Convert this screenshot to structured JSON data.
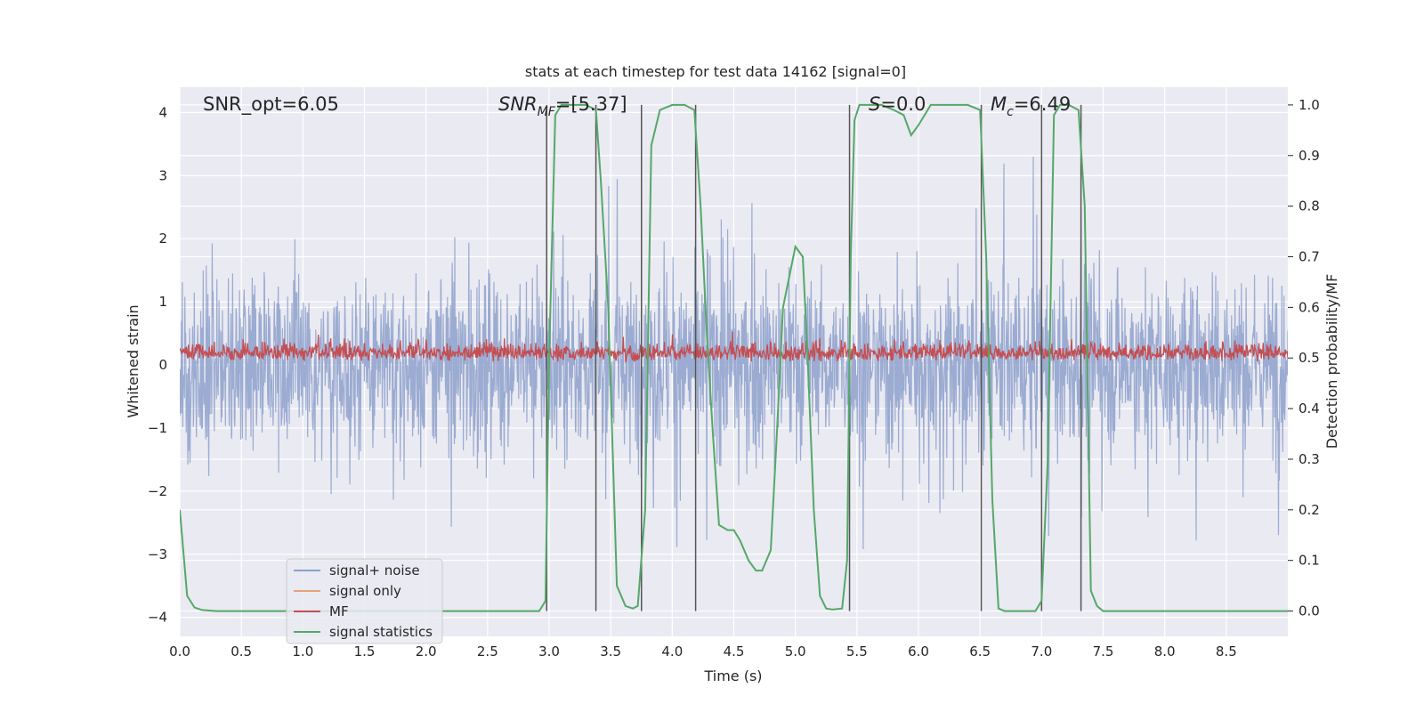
{
  "chart_data": {
    "type": "line",
    "title": "stats at each timestep for test data 14162 [signal=0]",
    "xlabel": "Time (s)",
    "ylabel": "Whitened strain",
    "ylabel_right": "Detection probability/MF",
    "xlim": [
      0,
      9
    ],
    "ylim": [
      -4.3,
      4.4
    ],
    "ylim_right": [
      -0.05,
      1.035
    ],
    "xticks": [
      0.0,
      0.5,
      1.0,
      1.5,
      2.0,
      2.5,
      3.0,
      3.5,
      4.0,
      4.5,
      5.0,
      5.5,
      6.0,
      6.5,
      7.0,
      7.5,
      8.0,
      8.5
    ],
    "xtick_labels": [
      "0.0",
      "0.5",
      "1.0",
      "1.5",
      "2.0",
      "2.5",
      "3.0",
      "3.5",
      "4.0",
      "4.5",
      "5.0",
      "5.5",
      "6.0",
      "6.5",
      "7.0",
      "7.5",
      "8.0",
      "8.5"
    ],
    "yticks": [
      4,
      3,
      2,
      1,
      0,
      -1,
      -2,
      -3,
      -4
    ],
    "ytick_labels": [
      "4",
      "3",
      "2",
      "1",
      "0",
      "−1",
      "−2",
      "−3",
      "−4"
    ],
    "yticks_right": [
      1.0,
      0.9,
      0.8,
      0.7,
      0.6,
      0.5,
      0.4,
      0.3,
      0.2,
      0.1,
      0.0
    ],
    "ytick_labels_right": [
      "1.0",
      "0.9",
      "0.8",
      "0.7",
      "0.6",
      "0.5",
      "0.4",
      "0.3",
      "0.2",
      "0.1",
      "0.0"
    ],
    "grid": true,
    "legend_position": "lower-left",
    "annotations": {
      "snr_opt": "SNR_opt=6.05",
      "snr_mf_main": "SNR",
      "snr_mf_sub": "MF",
      "snr_mf_value": "=[5.37]",
      "s_main": "S",
      "s_value": "=0.0",
      "mc_main": "M",
      "mc_sub": "c",
      "mc_value": "=6.49"
    },
    "series": [
      {
        "name": "signal+ noise",
        "color": "#8da0cb",
        "axis": "left",
        "noise_amplitude": 3.3
      },
      {
        "name": "signal only",
        "color": "#e8a07c",
        "axis": "left",
        "values": []
      },
      {
        "name": "MF",
        "color": "#c44e52",
        "axis": "left",
        "baseline": 0.05,
        "noise_amplitude": 0.7
      },
      {
        "name": "signal statistics",
        "color": "#55a868",
        "axis": "right",
        "x": [
          0.0,
          0.06,
          0.12,
          0.18,
          0.3,
          0.6,
          1.0,
          1.5,
          2.0,
          2.5,
          2.92,
          2.97,
          3.0,
          3.05,
          3.1,
          3.2,
          3.3,
          3.38,
          3.42,
          3.48,
          3.55,
          3.62,
          3.68,
          3.72,
          3.78,
          3.83,
          3.9,
          4.0,
          4.1,
          4.18,
          4.23,
          4.28,
          4.33,
          4.38,
          4.45,
          4.5,
          4.55,
          4.62,
          4.68,
          4.73,
          4.8,
          4.85,
          4.9,
          5.0,
          5.06,
          5.1,
          5.15,
          5.2,
          5.25,
          5.3,
          5.38,
          5.42,
          5.45,
          5.48,
          5.52,
          5.6,
          5.7,
          5.8,
          5.88,
          5.94,
          6.0,
          6.1,
          6.2,
          6.3,
          6.4,
          6.5,
          6.55,
          6.6,
          6.65,
          6.7,
          6.85,
          6.95,
          7.0,
          7.05,
          7.1,
          7.15,
          7.22,
          7.3,
          7.35,
          7.4,
          7.45,
          7.5,
          7.6,
          8.0,
          8.5,
          9.0
        ],
        "values": [
          0.2,
          0.03,
          0.007,
          0.002,
          0.0,
          0.0,
          0.0,
          0.0,
          0.0,
          0.0,
          0.0,
          0.02,
          0.5,
          0.98,
          1.0,
          1.0,
          1.0,
          0.99,
          0.85,
          0.6,
          0.05,
          0.01,
          0.005,
          0.01,
          0.2,
          0.92,
          0.99,
          1.0,
          1.0,
          0.99,
          0.8,
          0.55,
          0.35,
          0.17,
          0.16,
          0.16,
          0.14,
          0.1,
          0.08,
          0.08,
          0.12,
          0.35,
          0.6,
          0.72,
          0.7,
          0.5,
          0.2,
          0.03,
          0.005,
          0.003,
          0.005,
          0.1,
          0.7,
          0.97,
          1.0,
          1.0,
          1.0,
          0.99,
          0.98,
          0.94,
          0.96,
          1.0,
          1.0,
          1.0,
          1.0,
          0.99,
          0.7,
          0.22,
          0.005,
          0.0,
          0.0,
          0.0,
          0.02,
          0.3,
          0.98,
          1.0,
          1.0,
          0.99,
          0.8,
          0.04,
          0.01,
          0.0,
          0.0,
          0.0,
          0.0,
          0.0
        ]
      }
    ],
    "vertical_markers": [
      2.98,
      3.38,
      3.75,
      4.19,
      5.44,
      6.51,
      7.0,
      7.32
    ]
  }
}
